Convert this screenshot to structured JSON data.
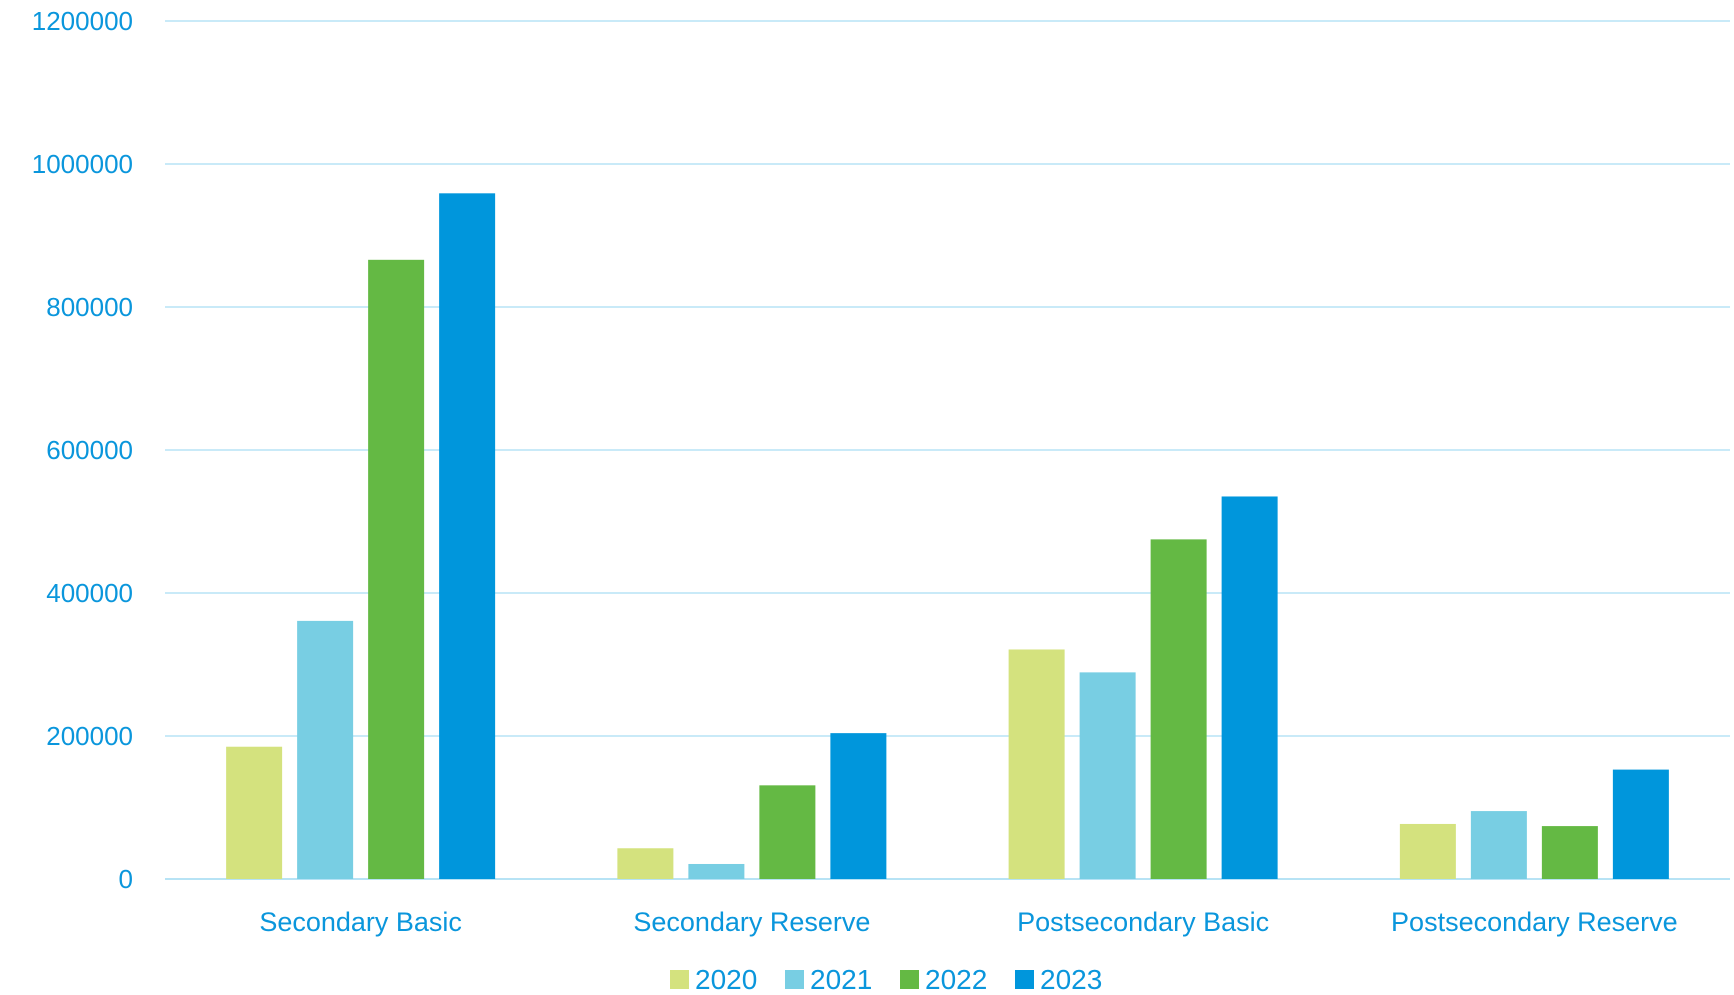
{
  "chart_data": {
    "type": "bar",
    "categories": [
      "Secondary Basic",
      "Secondary Reserve",
      "Postsecondary Basic",
      "Postsecondary Reserve"
    ],
    "series": [
      {
        "name": "2020",
        "color": "#d4e27e",
        "values": [
          185000,
          43000,
          321000,
          77000
        ]
      },
      {
        "name": "2021",
        "color": "#78cee3",
        "values": [
          361000,
          21000,
          289000,
          95000
        ]
      },
      {
        "name": "2022",
        "color": "#64b944",
        "values": [
          866000,
          131000,
          475000,
          74000
        ]
      },
      {
        "name": "2023",
        "color": "#0096dc",
        "values": [
          959000,
          204000,
          535000,
          153000
        ]
      }
    ],
    "ylim": [
      0,
      1200000
    ],
    "yticks": [
      0,
      200000,
      400000,
      600000,
      800000,
      1000000,
      1200000
    ],
    "grid": true,
    "legend_position": "bottom-center",
    "text_color": "#0a96dc",
    "grid_color": "#b7e3f5"
  }
}
